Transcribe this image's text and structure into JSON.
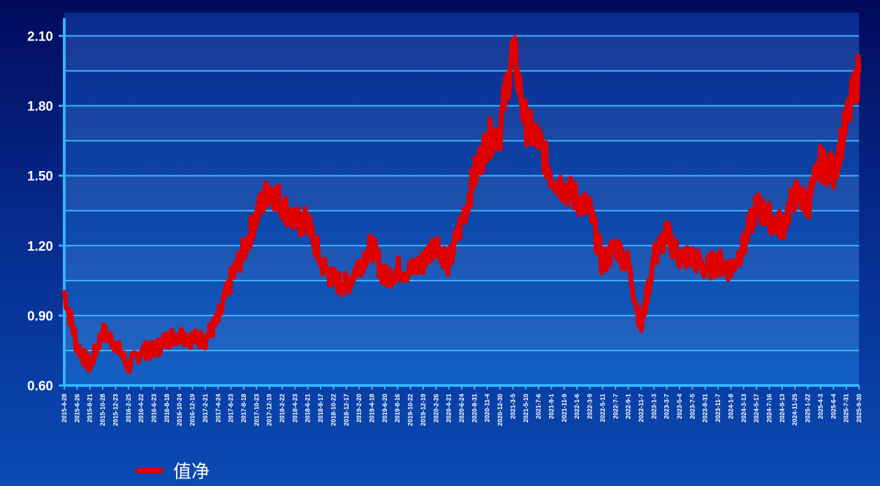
{
  "chart_data": {
    "type": "line",
    "ylim": [
      0.6,
      2.2
    ],
    "yticks": [
      "0.60",
      "0.90",
      "1.20",
      "1.50",
      "1.80",
      "2.10"
    ],
    "grid": true,
    "legend_position": "bottom-left",
    "colors": {
      "line": "#e00000",
      "grid": "#3fb6ff",
      "axis": "#37b3ff"
    },
    "categories": [
      "2015-4-28",
      "2015-6-26",
      "2015-8-21",
      "2015-10-28",
      "2015-12-23",
      "2016-2-25",
      "2016-4-22",
      "2016-6-23",
      "2016-8-18",
      "2016-10-24",
      "2016-12-19",
      "2017-2-21",
      "2017-4-24",
      "2017-6-23",
      "2017-8-18",
      "2017-10-23",
      "2017-12-19",
      "2018-2-22",
      "2018-4-23",
      "2018-6-21",
      "2018-8-17",
      "2018-10-22",
      "2018-12-17",
      "2019-2-20",
      "2019-4-18",
      "2019-6-20",
      "2019-8-16",
      "2019-10-22",
      "2019-12-19",
      "2020-2-26",
      "2020-4-21",
      "2020-6-24",
      "2020-8-31",
      "2020-11-4",
      "2020-12-30",
      "2021-3-5",
      "2021-5-10",
      "2021-7-6",
      "2021-9-1",
      "2021-11-9",
      "2022-1-6",
      "2022-3-9",
      "2022-5-11",
      "2022-7-7",
      "2022-9-1",
      "2022-11-7",
      "2023-1-3",
      "2023-3-7",
      "2023-5-4",
      "2023-7-5",
      "2023-8-31",
      "2023-11-7",
      "2024-1-8",
      "2024-3-13",
      "2024-5-17",
      "2024-7-16",
      "2024-9-13",
      "2024-11-25",
      "2025-1-22",
      "2025-4-3",
      "2025-6-4",
      "2025-7-31",
      "2025-9-30"
    ],
    "series": [
      {
        "name": "值净",
        "values": [
          1.0,
          0.77,
          0.68,
          0.83,
          0.78,
          0.68,
          0.75,
          0.75,
          0.8,
          0.82,
          0.8,
          0.8,
          0.88,
          1.05,
          1.18,
          1.33,
          1.45,
          1.38,
          1.3,
          1.3,
          1.13,
          1.05,
          1.03,
          1.12,
          1.2,
          1.06,
          1.1,
          1.09,
          1.13,
          1.22,
          1.12,
          1.3,
          1.5,
          1.65,
          1.7,
          2.05,
          1.72,
          1.65,
          1.5,
          1.45,
          1.4,
          1.35,
          1.12,
          1.2,
          1.12,
          0.85,
          1.15,
          1.25,
          1.15,
          1.15,
          1.1,
          1.13,
          1.1,
          1.2,
          1.37,
          1.32,
          1.28,
          1.42,
          1.38,
          1.55,
          1.52,
          1.72,
          1.95
        ]
      }
    ]
  }
}
